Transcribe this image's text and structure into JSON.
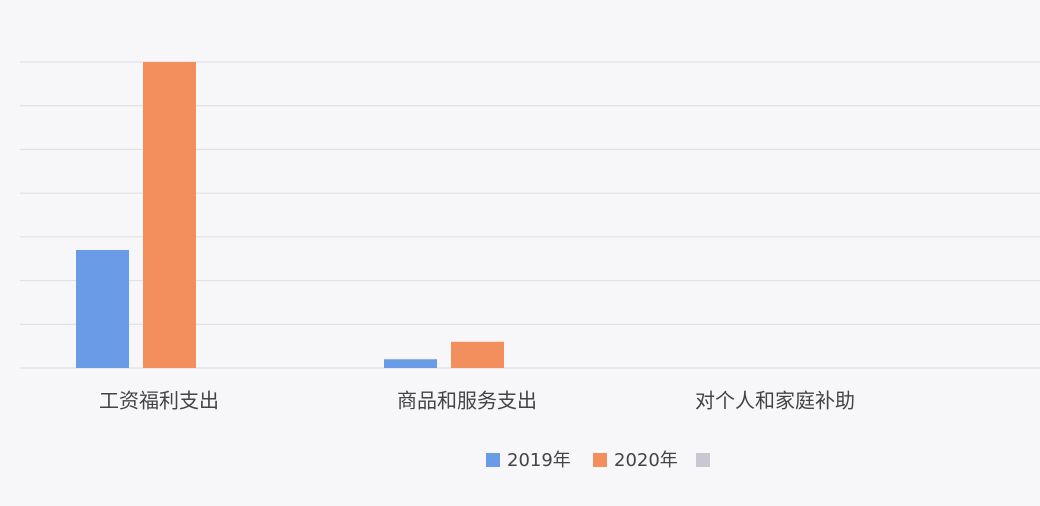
{
  "chart_data": {
    "type": "bar",
    "categories": [
      "工资福利支出",
      "商品和服务支出",
      "对个人和家庭补助"
    ],
    "series": [
      {
        "name": "2019年",
        "color": "#6a9be6",
        "values": [
          2.7,
          0.2,
          null
        ]
      },
      {
        "name": "2020年",
        "color": "#f28f5c",
        "values": [
          7.0,
          0.6,
          null
        ]
      },
      {
        "name": null,
        "color": "#c8c8d2",
        "values": [
          null,
          null,
          null
        ]
      }
    ],
    "ylim": [
      0,
      7
    ],
    "yticks": [
      0,
      1,
      2,
      3,
      4,
      5,
      6,
      7
    ],
    "grid": true,
    "legend": "bottom"
  }
}
